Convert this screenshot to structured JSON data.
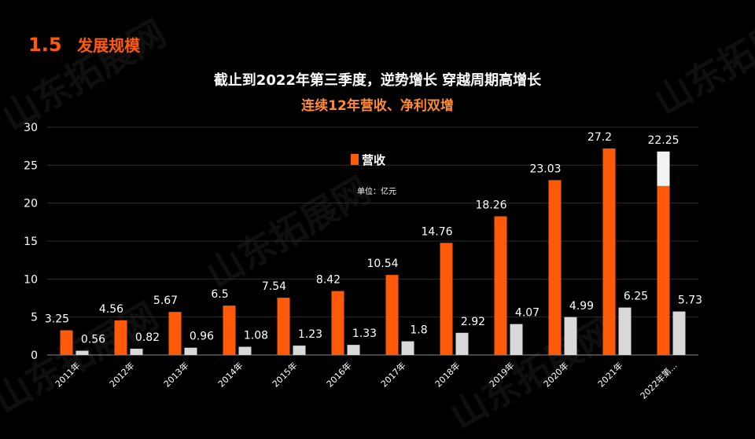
{
  "header": {
    "section_number": "1.5",
    "section_title": "发展规模",
    "headline": "截止到2022年第三季度，逆势增长  穿越周期高增长",
    "subheadline": "连续12年营收、净利双增",
    "watermark": "山东拓展网"
  },
  "colors": {
    "background": "#000000",
    "revenue": "#ff5a0a",
    "profit": "#d9d9d9",
    "highlight_top": "#f2f2f2"
  },
  "chart_data": {
    "type": "bar",
    "categories": [
      "2011年",
      "2012年",
      "2013年",
      "2014年",
      "2015年",
      "2016年",
      "2017年",
      "2018年",
      "2019年",
      "2020年",
      "2021年",
      "2022年第..."
    ],
    "series": [
      {
        "name": "营收",
        "values": [
          3.25,
          4.56,
          5.67,
          6.5,
          7.54,
          8.42,
          10.54,
          14.76,
          18.26,
          23.03,
          27.2,
          22.25
        ]
      },
      {
        "name": "",
        "values": [
          0.56,
          0.82,
          0.96,
          1.08,
          1.23,
          1.33,
          1.8,
          2.92,
          4.07,
          4.99,
          6.25,
          5.73
        ]
      }
    ],
    "highlight": {
      "category": "2022年第...",
      "top_value": 26.8
    },
    "ylim": [
      0,
      30
    ],
    "yticks": [
      0,
      5,
      10,
      15,
      20,
      25,
      30
    ],
    "unit_label": "单位：亿元",
    "legend_position": "top-center",
    "grid": true
  }
}
